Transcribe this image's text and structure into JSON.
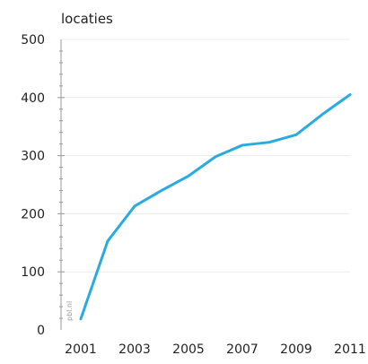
{
  "chart_data": {
    "type": "line",
    "title": "",
    "xlabel": "",
    "ylabel": "locaties",
    "x": [
      2001,
      2002,
      2003,
      2004,
      2005,
      2006,
      2007,
      2008,
      2009,
      2010,
      2011
    ],
    "series": [
      {
        "values": [
          19,
          153,
          213,
          240,
          265,
          298,
          318,
          323,
          336,
          372,
          405
        ],
        "color": "#29abe2"
      }
    ],
    "x_tick_labels": [
      "2001",
      "2003",
      "2005",
      "2007",
      "2009",
      "2011"
    ],
    "y_tick_labels": [
      "0",
      "100",
      "200",
      "300",
      "400",
      "500"
    ],
    "xlim": [
      2001,
      2011
    ],
    "ylim": [
      0,
      500
    ],
    "grid": true,
    "legend": "none",
    "watermark": "pbl.nl"
  }
}
